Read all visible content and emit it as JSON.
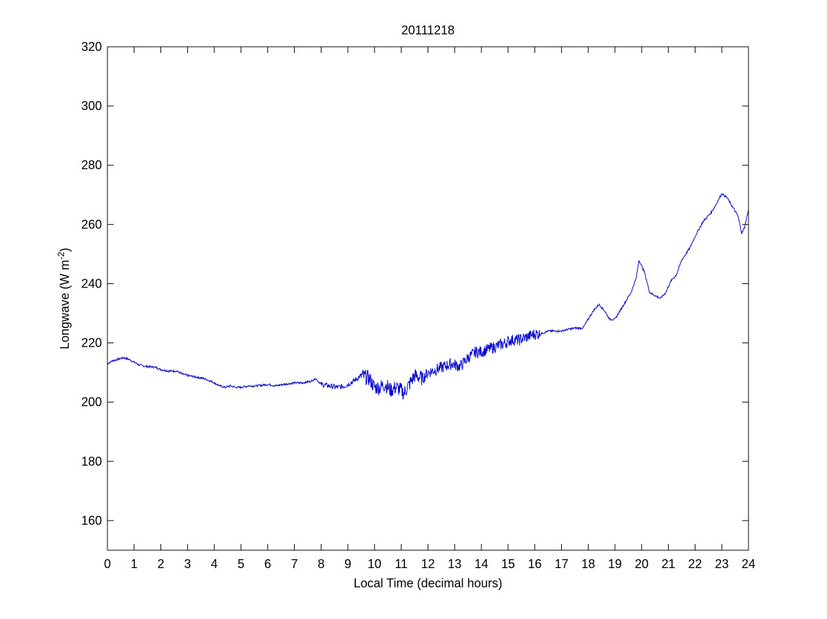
{
  "chart_data": {
    "type": "line",
    "title": "20111218",
    "xlabel": "Local Time (decimal hours)",
    "ylabel_main": "Longwave (W m",
    "ylabel_sup": "-2",
    "ylabel_close": ")",
    "xlim": [
      0,
      24
    ],
    "ylim": [
      150,
      320
    ],
    "xticks": [
      0,
      1,
      2,
      3,
      4,
      5,
      6,
      7,
      8,
      9,
      10,
      11,
      12,
      13,
      14,
      15,
      16,
      17,
      18,
      19,
      20,
      21,
      22,
      23,
      24
    ],
    "yticks": [
      160,
      180,
      200,
      220,
      240,
      260,
      280,
      300,
      320
    ],
    "grid": false,
    "line_color": "#0000cc",
    "series": [
      {
        "x": [
          0.0,
          0.2,
          0.4,
          0.6,
          0.8,
          1.0,
          1.2,
          1.5,
          1.8,
          2.0,
          2.3,
          2.6,
          2.8,
          3.0,
          3.3,
          3.6,
          3.9,
          4.2,
          4.4,
          4.6,
          4.8,
          5.0,
          5.3,
          5.6,
          6.0,
          6.3,
          6.6,
          7.0,
          7.3,
          7.6,
          7.8,
          8.0,
          8.3,
          8.6,
          8.9,
          9.2,
          9.5,
          9.8,
          10.0,
          10.2,
          10.4,
          10.6,
          10.8,
          11.0,
          11.1,
          11.3,
          11.5,
          11.8,
          12.0,
          12.3,
          12.6,
          12.9,
          13.2,
          13.5,
          13.8,
          14.0,
          14.3,
          14.6,
          14.9,
          15.1,
          15.4,
          15.7,
          16.0,
          16.2,
          16.5,
          16.8,
          17.0,
          17.2,
          17.5,
          17.8,
          18.0,
          18.2,
          18.4,
          18.6,
          18.8,
          19.0,
          19.2,
          19.4,
          19.6,
          19.8,
          19.9,
          20.1,
          20.3,
          20.5,
          20.7,
          20.9,
          21.1,
          21.3,
          21.5,
          21.8,
          22.0,
          22.3,
          22.6,
          22.8,
          23.0,
          23.2,
          23.4,
          23.6,
          23.75,
          23.85,
          24.0
        ],
        "y": [
          213,
          214,
          214.5,
          215,
          214.5,
          213.5,
          212.5,
          212,
          211.8,
          211,
          210.5,
          210.5,
          209.5,
          209,
          208.5,
          208,
          207,
          205.5,
          205,
          205.5,
          205,
          205,
          205.5,
          205.5,
          206,
          205.5,
          206,
          206.5,
          206.5,
          207,
          208,
          206,
          205.5,
          205,
          205.5,
          207,
          209,
          208,
          205,
          205,
          206,
          204,
          205,
          204,
          203,
          206,
          209,
          208,
          210,
          211,
          212,
          213,
          212,
          215,
          217,
          217,
          218,
          219,
          220,
          221,
          221,
          222,
          223,
          223,
          224,
          224,
          224,
          224.5,
          225,
          225,
          228,
          231,
          233,
          231,
          228,
          228,
          231,
          234,
          237,
          242,
          248,
          244,
          237,
          236,
          235,
          237,
          241,
          243,
          248,
          252,
          256,
          261,
          264,
          267,
          270.5,
          269,
          266,
          263,
          257,
          259,
          265
        ]
      }
    ]
  }
}
